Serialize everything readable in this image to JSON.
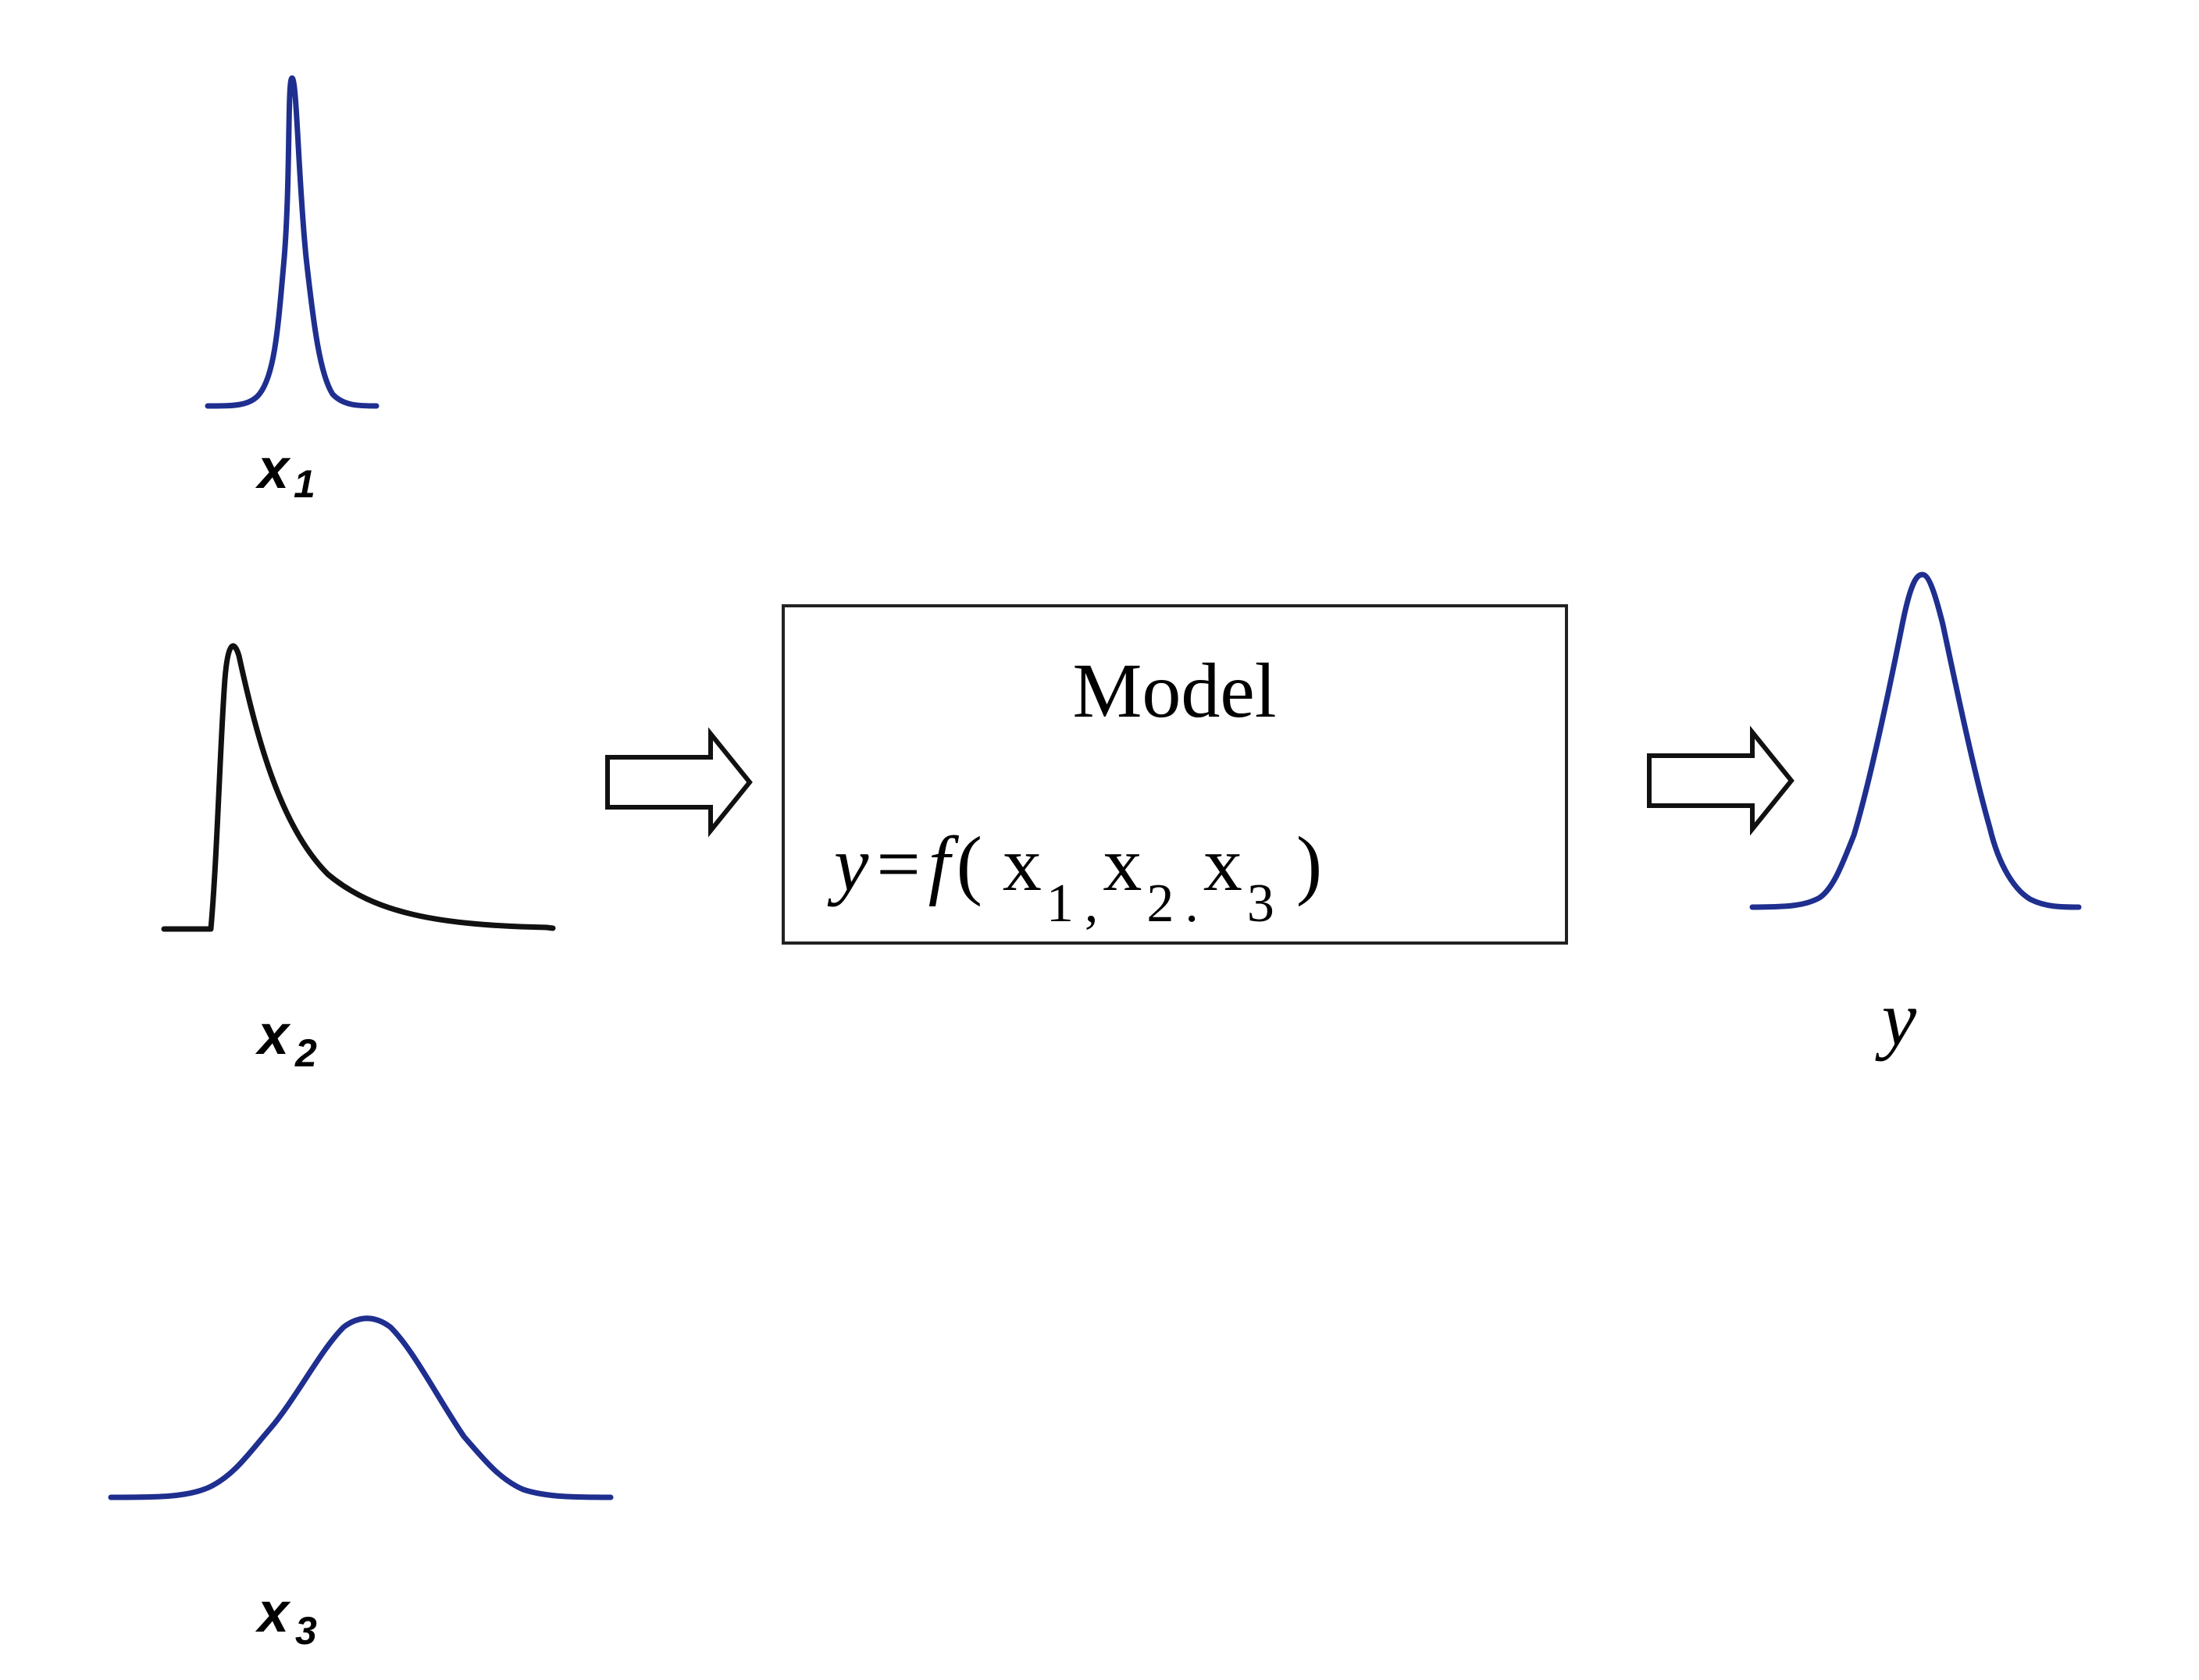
{
  "colors": {
    "distribution_blue": "#1f2f8f",
    "skewed_black": "#111111",
    "outline": "#222222",
    "background": "#ffffff"
  },
  "inputs": [
    {
      "var": "x",
      "sub": "1",
      "shape": "narrow-normal",
      "color_key": "distribution_blue"
    },
    {
      "var": "x",
      "sub": "2",
      "shape": "right-skewed",
      "color_key": "skewed_black"
    },
    {
      "var": "x",
      "sub": "3",
      "shape": "wide-normal",
      "color_key": "distribution_blue"
    }
  ],
  "model": {
    "title": "Model",
    "equation": {
      "lhs": "y",
      "equals": "=",
      "func": "f",
      "open": "(",
      "args": [
        {
          "var": "x",
          "sub": "1",
          "sep": ","
        },
        {
          "var": "x",
          "sub": "2",
          "sep": "."
        },
        {
          "var": "x",
          "sub": "3",
          "sep": ""
        }
      ],
      "close": ")"
    }
  },
  "output": {
    "label": "y",
    "shape": "normal",
    "color_key": "distribution_blue"
  },
  "icons": [
    "arrow-right-icon",
    "arrow-right-icon"
  ]
}
